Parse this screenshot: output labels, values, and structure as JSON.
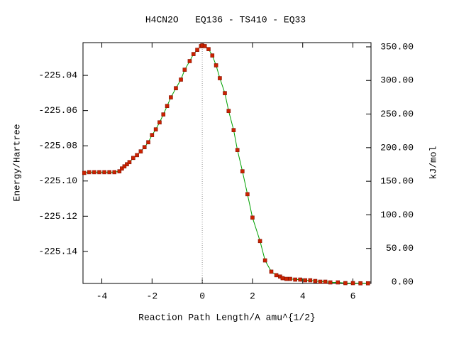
{
  "chart_data": {
    "type": "line",
    "title": "H4CN2O   EQ136 - TS410 - EQ33",
    "xlabel": "Reaction Path Length/A amu^{1/2}",
    "ylabel": "Energy/Hartree",
    "y2label": "kJ/mol",
    "xlim": [
      -4.75,
      6.72
    ],
    "xticks": [
      -4,
      -2,
      0,
      2,
      4,
      6
    ],
    "ylim": [
      -225.1582,
      -225.0214
    ],
    "yticks": [
      -225.04,
      -225.06,
      -225.08,
      -225.1,
      -225.12,
      -225.14
    ],
    "yticklabels": [
      "-225.04",
      "-225.06",
      "-225.08",
      "-225.10",
      "-225.12",
      "-225.14"
    ],
    "y2lim": [
      -2.1,
      356.3
    ],
    "y2ticks": [
      {
        "value": 350,
        "label": "350.00"
      },
      {
        "value": 300,
        "label": "300.00"
      },
      {
        "value": 250,
        "label": "250.00"
      },
      {
        "value": 200,
        "label": "200.00"
      },
      {
        "value": 150,
        "label": "150.00"
      },
      {
        "value": 100,
        "label": "100.00"
      },
      {
        "value": 50,
        "label": "50.00"
      },
      {
        "value": 0,
        "label": "0.00"
      }
    ],
    "vline": 0,
    "line_color": "#00a000",
    "marker_color": "#cc2200",
    "x": [
      -4.7,
      -4.5,
      -4.3,
      -4.1,
      -3.9,
      -3.7,
      -3.5,
      -3.3,
      -3.2,
      -3.1,
      -3.0,
      -2.9,
      -2.75,
      -2.6,
      -2.45,
      -2.3,
      -2.15,
      -2.0,
      -1.85,
      -1.7,
      -1.55,
      -1.4,
      -1.25,
      -1.05,
      -0.85,
      -0.7,
      -0.5,
      -0.35,
      -0.2,
      -0.05,
      0,
      0.1,
      0.25,
      0.4,
      0.55,
      0.7,
      0.9,
      1.05,
      1.25,
      1.4,
      1.6,
      1.8,
      2.0,
      2.3,
      2.5,
      2.75,
      2.95,
      3.1,
      3.2,
      3.35,
      3.5,
      3.7,
      3.9,
      4.1,
      4.3,
      4.5,
      4.7,
      4.9,
      5.1,
      5.4,
      5.7,
      6.0,
      6.3,
      6.6
    ],
    "values": [
      -225.0954,
      -225.095,
      -225.095,
      -225.095,
      -225.095,
      -225.095,
      -225.095,
      -225.0945,
      -225.0929,
      -225.0917,
      -225.0905,
      -225.0893,
      -225.0869,
      -225.0853,
      -225.0832,
      -225.0808,
      -225.078,
      -225.0739,
      -225.0707,
      -225.0667,
      -225.0622,
      -225.0574,
      -225.0525,
      -225.0473,
      -225.0424,
      -225.0368,
      -225.0319,
      -225.0279,
      -225.0255,
      -225.0234,
      -225.023,
      -225.0234,
      -225.0251,
      -225.0287,
      -225.0343,
      -225.0416,
      -225.0501,
      -225.0602,
      -225.0711,
      -225.0824,
      -225.0945,
      -225.1075,
      -225.1208,
      -225.1341,
      -225.1451,
      -225.1515,
      -225.1535,
      -225.1543,
      -225.1552,
      -225.1556,
      -225.1556,
      -225.156,
      -225.156,
      -225.1564,
      -225.1564,
      -225.1568,
      -225.1572,
      -225.1572,
      -225.1576,
      -225.1576,
      -225.158,
      -225.158,
      -225.1581,
      -225.1581
    ]
  }
}
